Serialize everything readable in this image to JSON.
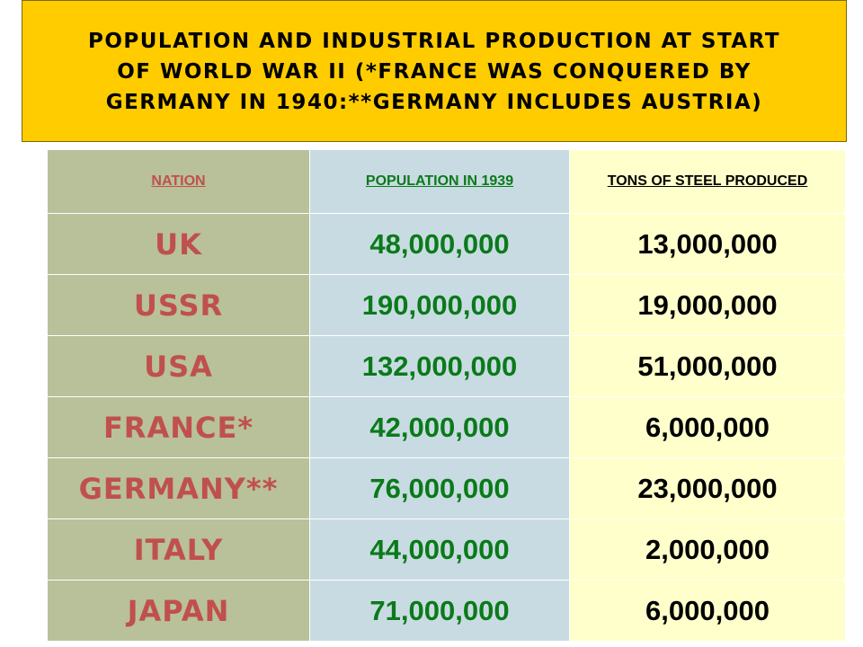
{
  "title": "POPULATION AND INDUSTRIAL PRODUCTION AT START OF WORLD WAR II (*FRANCE WAS CONQUERED BY GERMANY IN 1940:**GERMANY INCLUDES AUSTRIA)",
  "table": {
    "headers": {
      "nation": "NATION",
      "population": "POPULATION IN 1939",
      "steel": "TONS OF STEEL PRODUCED"
    },
    "rows": [
      {
        "nation": "UK",
        "population": "48,000,000",
        "steel": "13,000,000"
      },
      {
        "nation": "USSR",
        "population": "190,000,000",
        "steel": "19,000,000"
      },
      {
        "nation": "USA",
        "population": "132,000,000",
        "steel": "51,000,000"
      },
      {
        "nation": "FRANCE*",
        "population": "42,000,000",
        "steel": "6,000,000"
      },
      {
        "nation": "GERMANY**",
        "population": "76,000,000",
        "steel": "23,000,000"
      },
      {
        "nation": "ITALY",
        "population": "44,000,000",
        "steel": "2,000,000"
      },
      {
        "nation": "JAPAN",
        "population": "71,000,000",
        "steel": "6,000,000"
      }
    ]
  },
  "colors": {
    "title_background": "#ffcc00",
    "nation_column": "#b8c19a",
    "population_column": "#c9dbe2",
    "steel_column": "#ffffcc",
    "nation_text": "#c0504d",
    "population_text": "#0a7a1a",
    "steel_text": "#000000"
  }
}
